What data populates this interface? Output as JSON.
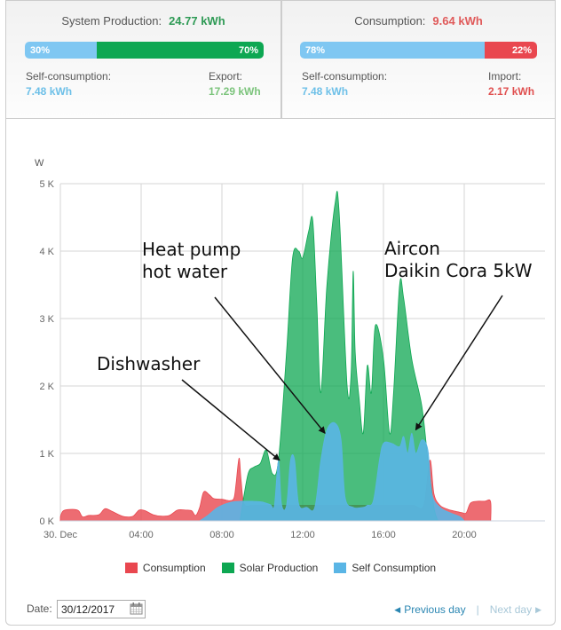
{
  "production_panel": {
    "title": "System Production:",
    "total": "24.77 kWh",
    "bar": [
      {
        "label": "30%",
        "percent": 30,
        "color": "#7fc7f2"
      },
      {
        "label": "70%",
        "percent": 70,
        "color": "#0da752"
      }
    ],
    "left_label": "Self-consumption:",
    "left_value": "7.48 kWh",
    "right_label": "Export:",
    "right_value": "17.29 kWh",
    "colors": {
      "total": "#2e9a55",
      "left_value": "#6ec0e8",
      "right_value": "#7cc47c"
    }
  },
  "consumption_panel": {
    "title": "Consumption:",
    "total": "9.64 kWh",
    "bar": [
      {
        "label": "78%",
        "percent": 78,
        "color": "#7fc7f2"
      },
      {
        "label": "22%",
        "percent": 22,
        "color": "#e9474f"
      }
    ],
    "left_label": "Self-consumption:",
    "left_value": "7.48 kWh",
    "right_label": "Import:",
    "right_value": "2.17 kWh",
    "colors": {
      "total": "#e05a5a",
      "left_value": "#6ec0e8",
      "right_value": "#e05050"
    }
  },
  "chart_data": {
    "type": "area",
    "title": "",
    "xlabel": "",
    "ylabel": "W",
    "x_unit": "hour",
    "xlim": [
      0,
      24
    ],
    "ylim": [
      0,
      5000
    ],
    "grid": true,
    "x_ticks": [
      {
        "v": 0,
        "label": "30. Dec"
      },
      {
        "v": 4,
        "label": "04:00"
      },
      {
        "v": 8,
        "label": "08:00"
      },
      {
        "v": 12,
        "label": "12:00"
      },
      {
        "v": 16,
        "label": "16:00"
      },
      {
        "v": 20,
        "label": "20:00"
      }
    ],
    "y_ticks": [
      {
        "v": 0,
        "label": "0 K"
      },
      {
        "v": 1000,
        "label": "1 K"
      },
      {
        "v": 2000,
        "label": "2 K"
      },
      {
        "v": 3000,
        "label": "3 K"
      },
      {
        "v": 4000,
        "label": "4 K"
      },
      {
        "v": 5000,
        "label": "5 K"
      }
    ],
    "legend_position": "bottom",
    "series": [
      {
        "name": "Consumption",
        "color": "#e9474f",
        "points": [
          [
            0,
            60
          ],
          [
            0.15,
            150
          ],
          [
            0.6,
            170
          ],
          [
            0.9,
            150
          ],
          [
            1.1,
            60
          ],
          [
            1.4,
            80
          ],
          [
            1.9,
            90
          ],
          [
            2.2,
            180
          ],
          [
            2.5,
            150
          ],
          [
            2.9,
            90
          ],
          [
            3.2,
            60
          ],
          [
            3.6,
            70
          ],
          [
            3.9,
            160
          ],
          [
            4.2,
            150
          ],
          [
            4.6,
            90
          ],
          [
            5.0,
            70
          ],
          [
            5.4,
            80
          ],
          [
            5.8,
            160
          ],
          [
            6.2,
            160
          ],
          [
            6.5,
            150
          ],
          [
            6.7,
            80
          ],
          [
            6.9,
            200
          ],
          [
            7.1,
            430
          ],
          [
            7.4,
            380
          ],
          [
            7.6,
            330
          ],
          [
            8.0,
            320
          ],
          [
            8.4,
            300
          ],
          [
            8.6,
            340
          ],
          [
            8.7,
            550
          ],
          [
            8.85,
            930
          ],
          [
            8.95,
            600
          ],
          [
            9.1,
            250
          ],
          [
            9.5,
            230
          ],
          [
            10,
            230
          ],
          [
            10.5,
            230
          ],
          [
            11,
            230
          ],
          [
            11.5,
            230
          ],
          [
            12,
            230
          ],
          [
            12.5,
            230
          ],
          [
            13,
            230
          ],
          [
            13.5,
            230
          ],
          [
            14,
            230
          ],
          [
            14.5,
            230
          ],
          [
            15,
            230
          ],
          [
            15.5,
            230
          ],
          [
            16,
            230
          ],
          [
            16.5,
            230
          ],
          [
            17,
            230
          ],
          [
            17.5,
            230
          ],
          [
            18.0,
            230
          ],
          [
            18.3,
            900
          ],
          [
            18.5,
            400
          ],
          [
            18.8,
            230
          ],
          [
            19.2,
            170
          ],
          [
            19.6,
            140
          ],
          [
            19.9,
            120
          ],
          [
            20.1,
            120
          ],
          [
            20.3,
            260
          ],
          [
            20.6,
            290
          ],
          [
            21.0,
            290
          ],
          [
            21.3,
            290
          ],
          [
            21.31,
            0
          ]
        ]
      },
      {
        "name": "Solar Production",
        "color": "#0da752",
        "points": [
          [
            8.9,
            0
          ],
          [
            9.0,
            200
          ],
          [
            9.3,
            700
          ],
          [
            9.6,
            800
          ],
          [
            9.9,
            850
          ],
          [
            10.2,
            1050
          ],
          [
            10.5,
            700
          ],
          [
            10.8,
            900
          ],
          [
            11.2,
            2500
          ],
          [
            11.5,
            3900
          ],
          [
            11.8,
            4000
          ],
          [
            12.0,
            3900
          ],
          [
            12.3,
            4300
          ],
          [
            12.5,
            4450
          ],
          [
            12.7,
            3200
          ],
          [
            12.9,
            1900
          ],
          [
            13.2,
            3500
          ],
          [
            13.6,
            4700
          ],
          [
            13.8,
            4600
          ],
          [
            14.2,
            2000
          ],
          [
            14.4,
            2200
          ],
          [
            14.5,
            3700
          ],
          [
            14.6,
            2500
          ],
          [
            14.8,
            1800
          ],
          [
            15.0,
            1300
          ],
          [
            15.2,
            2300
          ],
          [
            15.4,
            1900
          ],
          [
            15.6,
            2900
          ],
          [
            16.0,
            2400
          ],
          [
            16.3,
            1300
          ],
          [
            16.5,
            1900
          ],
          [
            16.8,
            3500
          ],
          [
            17.0,
            3300
          ],
          [
            17.4,
            2400
          ],
          [
            17.9,
            1700
          ],
          [
            18.2,
            900
          ],
          [
            18.5,
            200
          ],
          [
            18.7,
            0
          ]
        ]
      },
      {
        "name": "Self Consumption",
        "color": "#5ab5e5",
        "points": [
          [
            6.9,
            0
          ],
          [
            7.3,
            80
          ],
          [
            7.7,
            180
          ],
          [
            8.0,
            230
          ],
          [
            8.5,
            280
          ],
          [
            9.0,
            290
          ],
          [
            9.5,
            290
          ],
          [
            10.0,
            280
          ],
          [
            10.4,
            240
          ],
          [
            10.6,
            230
          ],
          [
            10.8,
            900
          ],
          [
            10.95,
            250
          ],
          [
            11.2,
            230
          ],
          [
            11.4,
            900
          ],
          [
            11.6,
            900
          ],
          [
            11.8,
            250
          ],
          [
            12.2,
            200
          ],
          [
            12.6,
            200
          ],
          [
            12.9,
            900
          ],
          [
            13.2,
            1350
          ],
          [
            13.6,
            1450
          ],
          [
            13.9,
            1200
          ],
          [
            14.1,
            350
          ],
          [
            14.5,
            200
          ],
          [
            15.0,
            200
          ],
          [
            15.2,
            230
          ],
          [
            15.5,
            300
          ],
          [
            15.8,
            900
          ],
          [
            16.0,
            1150
          ],
          [
            16.4,
            1150
          ],
          [
            16.8,
            1100
          ],
          [
            17.0,
            1250
          ],
          [
            17.2,
            1000
          ],
          [
            17.4,
            1300
          ],
          [
            17.6,
            1000
          ],
          [
            17.9,
            1200
          ],
          [
            18.2,
            1050
          ],
          [
            18.4,
            400
          ],
          [
            18.8,
            200
          ],
          [
            19.3,
            120
          ],
          [
            19.8,
            60
          ],
          [
            20.0,
            0
          ]
        ]
      }
    ],
    "annotations": [
      {
        "text": [
          "Dishwasher"
        ],
        "arrow_to": [
          10.85,
          900
        ]
      },
      {
        "text": [
          "Heat pump",
          "hot water"
        ],
        "arrow_to": [
          13.1,
          1300
        ]
      },
      {
        "text": [
          "Aircon",
          "Daikin Cora 5kW"
        ],
        "arrow_to": [
          17.6,
          1350
        ]
      }
    ]
  },
  "legend": [
    {
      "label": "Consumption",
      "color": "#e9474f"
    },
    {
      "label": "Solar Production",
      "color": "#0da752"
    },
    {
      "label": "Self Consumption",
      "color": "#5ab5e5"
    }
  ],
  "date_picker": {
    "label": "Date:",
    "value": "30/12/2017"
  },
  "navigation": {
    "previous": "Previous day",
    "separator": "|",
    "next": "Next day"
  }
}
